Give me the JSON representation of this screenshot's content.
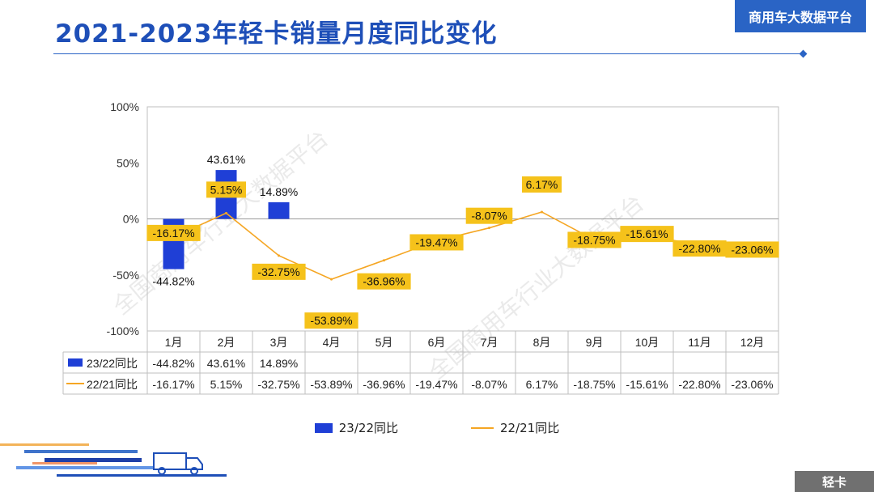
{
  "header": {
    "title": "2021-2023年轻卡销量月度同比变化",
    "brand": "商用车大数据平台",
    "footer_tag": "轻卡",
    "watermark": "全国商用车行业大数据平台"
  },
  "colors": {
    "accent": "#2a64c5",
    "bar": "#1f3fd6",
    "line": "#f5a623",
    "label_bg": "#f5c21b"
  },
  "chart_data": {
    "type": "bar",
    "categories": [
      "1月",
      "2月",
      "3月",
      "4月",
      "5月",
      "6月",
      "7月",
      "8月",
      "9月",
      "10月",
      "11月",
      "12月"
    ],
    "ylim": [
      -100,
      100
    ],
    "yticks": [
      100,
      50,
      0,
      -50,
      -100
    ],
    "ytick_labels": [
      "100%",
      "50%",
      "0%",
      "-50%",
      "-100%"
    ],
    "series": [
      {
        "name": "23/22同比",
        "kind": "bar",
        "values": [
          -44.82,
          43.61,
          14.89,
          null,
          null,
          null,
          null,
          null,
          null,
          null,
          null,
          null
        ],
        "labels": [
          "-44.82%",
          "43.61%",
          "14.89%",
          "",
          "",
          "",
          "",
          "",
          "",
          "",
          "",
          ""
        ]
      },
      {
        "name": "22/21同比",
        "kind": "line",
        "values": [
          -16.17,
          5.15,
          -32.75,
          -53.89,
          -36.96,
          -19.47,
          -8.07,
          6.17,
          -18.75,
          -15.61,
          -22.8,
          -23.06
        ],
        "labels": [
          "-16.17%",
          "5.15%",
          "-32.75%",
          "-53.89%",
          "-36.96%",
          "-19.47%",
          "-8.07%",
          "6.17%",
          "-18.75%",
          "-15.61%",
          "-22.80%",
          "-23.06%"
        ]
      }
    ],
    "legend": [
      "23/22同比",
      "22/21同比"
    ],
    "legend_position": "bottom"
  }
}
